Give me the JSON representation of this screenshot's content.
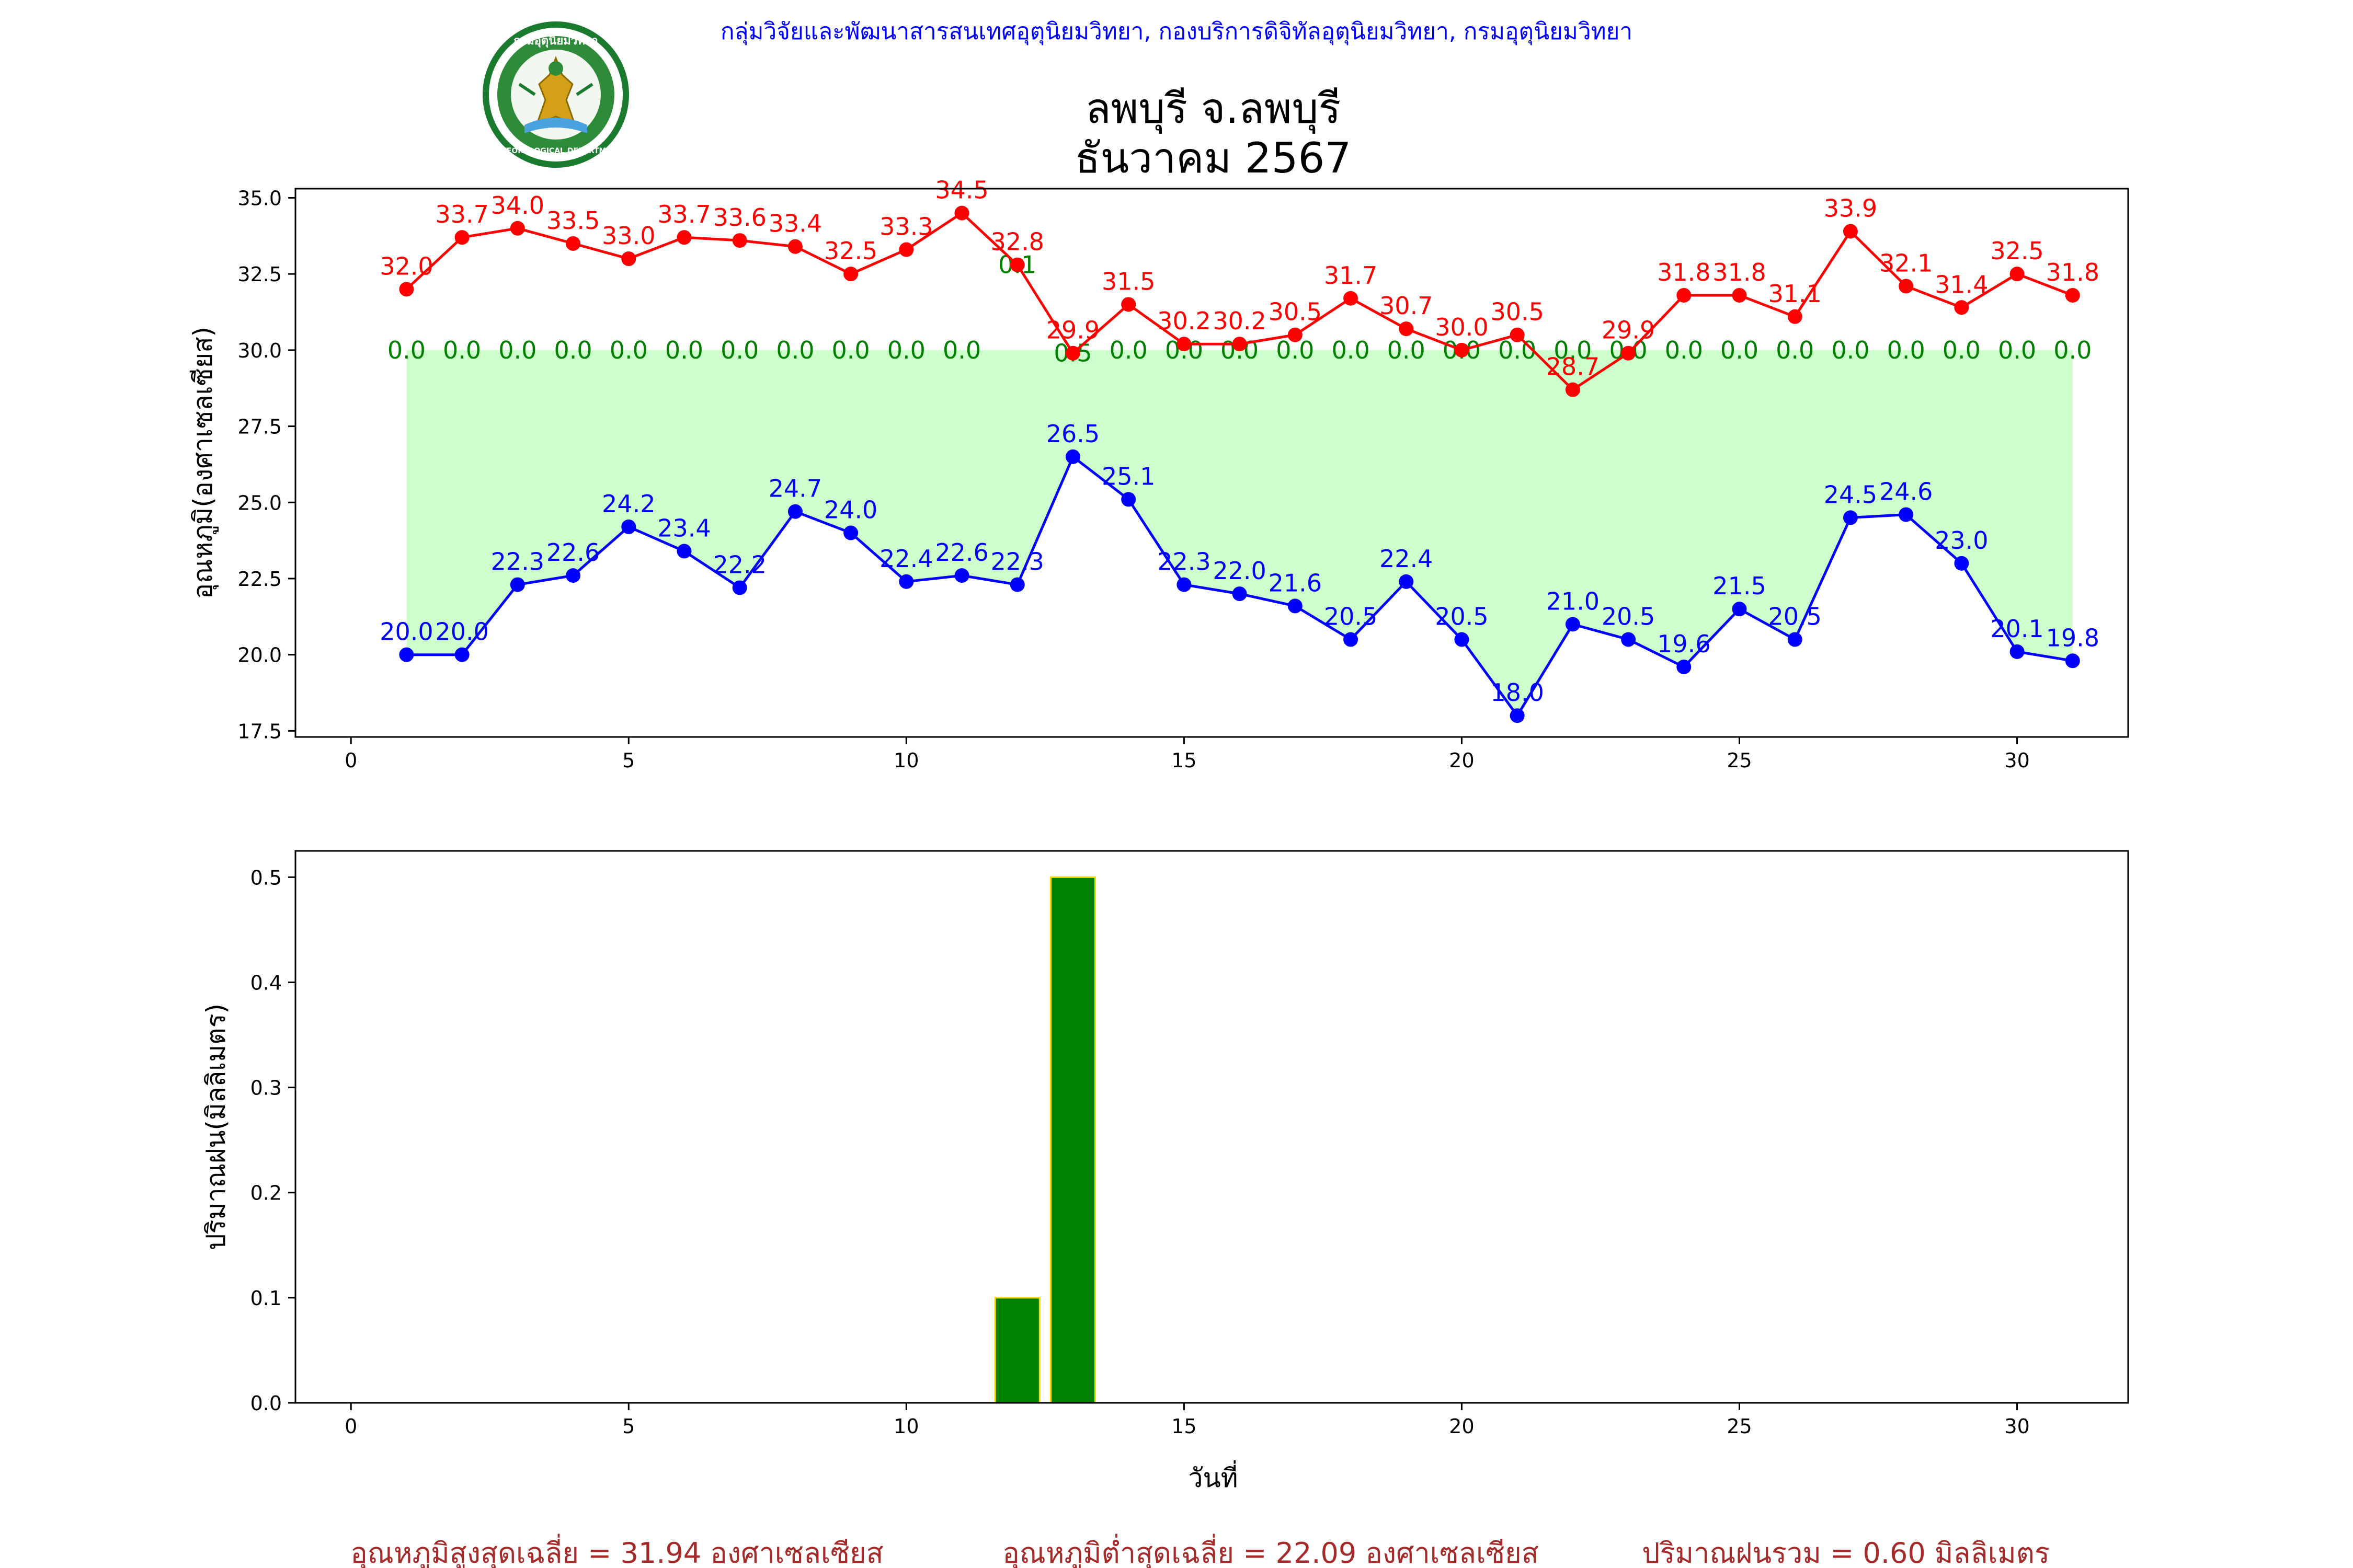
{
  "header": {
    "organization": "กลุ่มวิจัยและพัฒนาสารสนเทศอุตุนิยมวิทยา, กองบริการดิจิทัลอุตุนิยมวิทยา, กรมอุตุนิยมวิทยา",
    "title_line1": "ลพบุรี จ.ลพบุรี",
    "title_line2": "ธันวาคม 2567",
    "logo": {
      "top_text": "กรมอุตุนิยมวิทยา",
      "bottom_text": "METEOROLOGICAL DEPARTMENT"
    }
  },
  "footer": {
    "avg_max": "อุณหภูมิสูงสุดเฉลี่ย = 31.94 องศาเซลเซียส",
    "avg_min": "อุณหภูมิต่ำสุดเฉลี่ย = 22.09 องศาเซลเซียส",
    "total_rain": "ปริมาณฝนรวม = 0.60 มิลลิเมตร"
  },
  "colors": {
    "max_line": "#ff0000",
    "min_line": "#0000ff",
    "fill": "#ccffcc",
    "rain_label": "#008000",
    "bar_fill": "#008000",
    "bar_edge": "#ffd700",
    "header_text": "#0000ff",
    "footer_text": "#a52a2a"
  },
  "chart_data": [
    {
      "type": "line",
      "ylabel": "อุณหภูมิ(องศาเซลเซียส)",
      "xlabel": "",
      "xlim": [
        -1,
        32
      ],
      "ylim": [
        17.3,
        35.3
      ],
      "xticks": [
        0,
        5,
        10,
        15,
        20,
        25,
        30
      ],
      "yticks": [
        17.5,
        20.0,
        22.5,
        25.0,
        27.5,
        30.0,
        32.5,
        35.0
      ],
      "x": [
        1,
        2,
        3,
        4,
        5,
        6,
        7,
        8,
        9,
        10,
        11,
        12,
        13,
        14,
        15,
        16,
        17,
        18,
        19,
        20,
        21,
        22,
        23,
        24,
        25,
        26,
        27,
        28,
        29,
        30,
        31
      ],
      "series": [
        {
          "key": "max",
          "values": [
            32.0,
            33.7,
            34.0,
            33.5,
            33.0,
            33.7,
            33.6,
            33.4,
            32.5,
            33.3,
            34.5,
            32.8,
            29.9,
            31.5,
            30.2,
            30.2,
            30.5,
            31.7,
            30.7,
            30.0,
            30.5,
            28.7,
            29.9,
            31.8,
            31.8,
            31.1,
            33.9,
            32.1,
            31.4,
            32.5,
            31.8
          ],
          "labels": [
            "32.0",
            "33.7",
            "34.0",
            "33.5",
            "33.0",
            "33.7",
            "33.6",
            "33.4",
            "32.5",
            "33.3",
            "34.5",
            "32.8",
            "29.9",
            "31.5",
            "30.2",
            "30.2",
            "30.5",
            "31.7",
            "30.7",
            "30.0",
            "30.5",
            "28.7",
            "29.9",
            "31.8",
            "31.8",
            "31.1",
            "33.9",
            "32.1",
            "31.4",
            "32.5",
            "31.8"
          ]
        },
        {
          "key": "min",
          "values": [
            20.0,
            20.0,
            22.3,
            22.6,
            24.2,
            23.4,
            22.2,
            24.7,
            24.0,
            22.4,
            22.6,
            22.3,
            26.5,
            25.1,
            22.3,
            22.0,
            21.6,
            20.5,
            22.4,
            20.5,
            18.0,
            21.0,
            20.5,
            19.6,
            21.5,
            20.5,
            24.5,
            24.6,
            23.0,
            20.1,
            19.8
          ],
          "labels": [
            "20.0",
            "20.0",
            "22.3",
            "22.6",
            "24.2",
            "23.4",
            "22.2",
            "24.7",
            "24.0",
            "22.4",
            "22.6",
            "22.3",
            "26.5",
            "25.1",
            "22.3",
            "22.0",
            "21.6",
            "20.5",
            "22.4",
            "20.5",
            "18.0",
            "21.0",
            "20.5",
            "19.6",
            "21.5",
            "20.5",
            "24.5",
            "24.6",
            "23.0",
            "20.1",
            "19.8"
          ]
        }
      ],
      "rain_labels": [
        "0.0",
        "0.0",
        "0.0",
        "0.0",
        "0.0",
        "0.0",
        "0.0",
        "0.0",
        "0.0",
        "0.0",
        "0.0",
        "0.1",
        "0.5",
        "0.0",
        "0.0",
        "0.0",
        "0.0",
        "0.0",
        "0.0",
        "0.0",
        "0.0",
        "0.0",
        "0.0",
        "0.0",
        "0.0",
        "0.0",
        "0.0",
        "0.0",
        "0.0",
        "0.0",
        "0.0"
      ],
      "rain_label_y": [
        30.0,
        30.0,
        30.0,
        30.0,
        30.0,
        30.0,
        30.0,
        30.0,
        30.0,
        30.0,
        30.0,
        32.8,
        29.9,
        30.0,
        30.0,
        30.0,
        30.0,
        30.0,
        30.0,
        30.0,
        30.0,
        30.0,
        30.0,
        30.0,
        30.0,
        30.0,
        30.0,
        30.0,
        30.0,
        30.0,
        30.0
      ],
      "grid": false,
      "legend": "none"
    },
    {
      "type": "bar",
      "ylabel": "ปริมาณฝน(มิลลิเมตร)",
      "xlabel": "วันที่",
      "xlim": [
        -1,
        32
      ],
      "ylim": [
        0,
        0.525
      ],
      "xticks": [
        0,
        5,
        10,
        15,
        20,
        25,
        30
      ],
      "yticks": [
        0.0,
        0.1,
        0.2,
        0.3,
        0.4,
        0.5
      ],
      "ytick_labels": [
        "0.0",
        "0.1",
        "0.2",
        "0.3",
        "0.4",
        "0.5"
      ],
      "x": [
        1,
        2,
        3,
        4,
        5,
        6,
        7,
        8,
        9,
        10,
        11,
        12,
        13,
        14,
        15,
        16,
        17,
        18,
        19,
        20,
        21,
        22,
        23,
        24,
        25,
        26,
        27,
        28,
        29,
        30,
        31
      ],
      "values": [
        0,
        0,
        0,
        0,
        0,
        0,
        0,
        0,
        0,
        0,
        0,
        0.1,
        0.5,
        0,
        0,
        0,
        0,
        0,
        0,
        0,
        0,
        0,
        0,
        0,
        0,
        0,
        0,
        0,
        0,
        0,
        0
      ],
      "grid": false,
      "legend": "none"
    }
  ]
}
